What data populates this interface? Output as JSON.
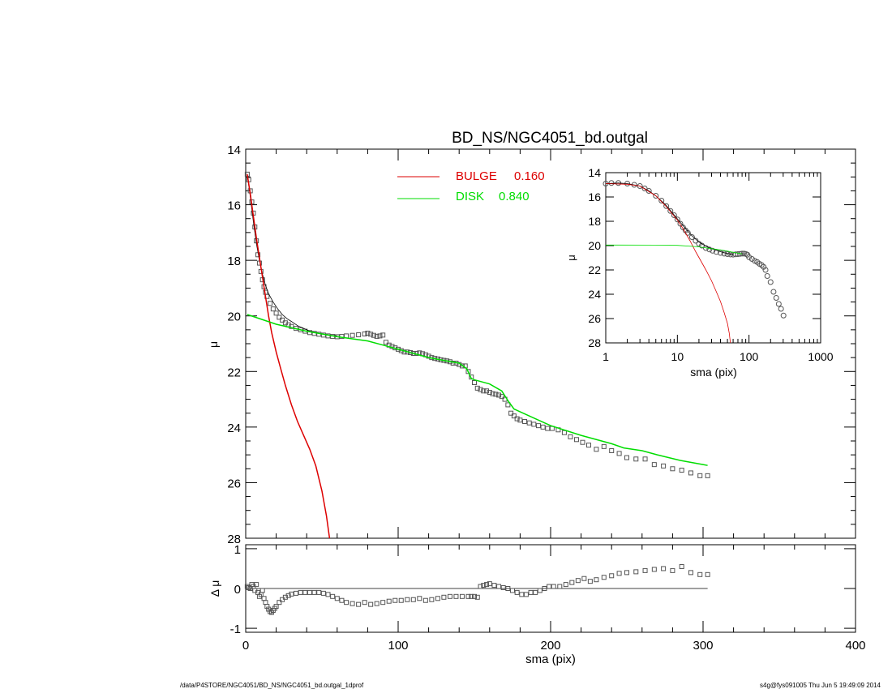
{
  "chart_data": [
    {
      "panel": "main",
      "type": "scatter",
      "title": "BD_NS/NGC4051_bd.outgal",
      "xlabel": "",
      "ylabel": "μ",
      "xlim": [
        0,
        400
      ],
      "ylim": [
        28,
        14
      ],
      "y_reversed": true,
      "yticks": [
        14,
        16,
        18,
        20,
        22,
        24,
        26,
        28
      ],
      "xticks": [
        0,
        100,
        200,
        300,
        400
      ],
      "legend": [
        {
          "label": "BULGE",
          "value": "0.160",
          "color": "#dd0000"
        },
        {
          "label": "DISK",
          "value": "0.840",
          "color": "#00dd00"
        }
      ],
      "legend_placement": "top-center",
      "series": [
        {
          "kind": "observed",
          "marker": "square",
          "color": "#555555",
          "x": [
            1,
            2,
            3,
            4,
            5,
            6,
            7,
            8,
            9,
            10,
            11,
            12,
            13,
            14,
            16,
            18,
            20,
            22,
            24,
            26,
            28,
            30,
            33,
            36,
            39,
            42,
            45,
            48,
            51,
            54,
            57,
            60,
            63,
            66,
            70,
            74,
            78,
            80,
            82,
            84,
            86,
            88,
            90,
            92,
            94,
            96,
            98,
            100,
            102,
            104,
            106,
            108,
            110,
            112,
            114,
            116,
            118,
            120,
            122,
            124,
            126,
            128,
            130,
            132,
            134,
            136,
            138,
            140,
            142,
            144,
            146,
            148,
            150,
            152,
            154,
            156,
            158,
            160,
            162,
            164,
            166,
            168,
            170,
            172,
            174,
            176,
            178,
            180,
            183,
            186,
            189,
            192,
            195,
            198,
            201,
            205,
            209,
            213,
            217,
            221,
            225,
            230,
            235,
            240,
            245,
            250,
            256,
            262,
            268,
            274,
            280,
            286,
            292,
            298,
            303
          ],
          "y": [
            14.9,
            15.1,
            15.5,
            15.9,
            16.3,
            16.8,
            17.3,
            17.8,
            18.1,
            18.4,
            18.7,
            18.95,
            19.15,
            19.3,
            19.55,
            19.75,
            19.9,
            20.05,
            20.15,
            20.25,
            20.32,
            20.38,
            20.45,
            20.5,
            20.55,
            20.6,
            20.63,
            20.66,
            20.69,
            20.72,
            20.74,
            20.75,
            20.74,
            20.72,
            20.7,
            20.68,
            20.65,
            20.62,
            20.66,
            20.7,
            20.74,
            20.72,
            20.69,
            20.95,
            21.05,
            21.1,
            21.15,
            21.2,
            21.25,
            21.3,
            21.3,
            21.32,
            21.35,
            21.35,
            21.33,
            21.36,
            21.4,
            21.45,
            21.5,
            21.53,
            21.55,
            21.58,
            21.6,
            21.62,
            21.65,
            21.7,
            21.7,
            21.75,
            21.8,
            21.8,
            22.0,
            22.2,
            22.4,
            22.6,
            22.65,
            22.7,
            22.7,
            22.75,
            22.8,
            22.82,
            22.85,
            22.9,
            23.0,
            23.2,
            23.5,
            23.6,
            23.7,
            23.75,
            23.8,
            23.85,
            23.9,
            23.95,
            24.0,
            24.05,
            24.05,
            24.1,
            24.2,
            24.35,
            24.45,
            24.55,
            24.65,
            24.8,
            24.7,
            24.85,
            24.95,
            25.1,
            25.15,
            25.15,
            25.35,
            25.4,
            25.5,
            25.55,
            25.65,
            25.75,
            25.75
          ]
        },
        {
          "kind": "total-model",
          "color": "#000000",
          "x": [
            1,
            3,
            5,
            7,
            9,
            11,
            13,
            15,
            18,
            21,
            24,
            27,
            30,
            34,
            38,
            42,
            46,
            50,
            55,
            60
          ],
          "y": [
            14.9,
            15.7,
            16.6,
            17.4,
            18.0,
            18.5,
            18.9,
            19.2,
            19.5,
            19.75,
            19.95,
            20.1,
            20.2,
            20.35,
            20.45,
            20.55,
            20.6,
            20.65,
            20.7,
            20.72
          ]
        },
        {
          "kind": "bulge",
          "name": "BULGE",
          "color": "#dd0000",
          "x": [
            1,
            3,
            5,
            7,
            9,
            11,
            13,
            15,
            17,
            20,
            23,
            26,
            30,
            34,
            38,
            42,
            46,
            50,
            53,
            55
          ],
          "y": [
            14.9,
            15.6,
            16.4,
            17.2,
            17.9,
            18.6,
            19.3,
            20.0,
            20.6,
            21.3,
            21.9,
            22.5,
            23.2,
            23.8,
            24.3,
            24.8,
            25.4,
            26.3,
            27.2,
            28.0
          ]
        },
        {
          "kind": "disk",
          "name": "DISK",
          "color": "#00dd00",
          "x": [
            1,
            20,
            40,
            60,
            80,
            90,
            100,
            110,
            120,
            130,
            140,
            145,
            148,
            150,
            160,
            168,
            172,
            176,
            190,
            200,
            220,
            240,
            248,
            260,
            270,
            285,
            300,
            303
          ],
          "y": [
            19.95,
            20.3,
            20.55,
            20.75,
            20.9,
            21.05,
            21.2,
            21.35,
            21.5,
            21.6,
            21.7,
            21.9,
            22.25,
            22.3,
            22.45,
            22.7,
            23.05,
            23.35,
            23.7,
            23.95,
            24.3,
            24.6,
            24.75,
            24.85,
            25.0,
            25.2,
            25.35,
            25.38
          ]
        }
      ]
    },
    {
      "panel": "inset",
      "type": "scatter",
      "xlabel": "sma (pix)",
      "ylabel": "μ",
      "xscale": "log",
      "xlim": [
        1,
        1000
      ],
      "ylim": [
        28,
        14
      ],
      "y_reversed": true,
      "xticklabels": [
        "1",
        "10",
        "100",
        "1000"
      ],
      "yticks": [
        14,
        16,
        18,
        20,
        22,
        24,
        26,
        28
      ],
      "series": [
        {
          "kind": "observed",
          "marker": "circle",
          "color": "#555555",
          "x": [
            1,
            1.2,
            1.5,
            2,
            2.5,
            3,
            3.5,
            4,
            5,
            6,
            7,
            8,
            9,
            10,
            11,
            12,
            13,
            14,
            16,
            18,
            20,
            22,
            25,
            28,
            31,
            35,
            40,
            45,
            50,
            55,
            60,
            65,
            70,
            75,
            80,
            85,
            90,
            95,
            100,
            110,
            120,
            130,
            140,
            150,
            160,
            170,
            180,
            200,
            220,
            240,
            260,
            280,
            303
          ],
          "y": [
            14.9,
            14.85,
            14.85,
            14.9,
            15.0,
            15.1,
            15.3,
            15.5,
            15.9,
            16.3,
            16.75,
            17.15,
            17.5,
            17.85,
            18.2,
            18.5,
            18.75,
            18.95,
            19.3,
            19.6,
            19.85,
            20.0,
            20.2,
            20.32,
            20.42,
            20.52,
            20.6,
            20.66,
            20.7,
            20.73,
            20.74,
            20.72,
            20.7,
            20.68,
            20.66,
            20.66,
            20.68,
            20.75,
            20.95,
            21.1,
            21.25,
            21.35,
            21.5,
            21.6,
            21.75,
            22.0,
            22.5,
            23.0,
            23.8,
            24.3,
            24.8,
            25.2,
            25.75
          ]
        },
        {
          "kind": "total-model",
          "color": "#000000",
          "x": [
            1,
            1.5,
            2,
            3,
            4,
            5,
            7,
            10,
            13,
            16,
            20,
            25,
            30,
            40,
            50,
            60
          ],
          "y": [
            14.9,
            14.85,
            14.9,
            15.1,
            15.5,
            15.9,
            16.7,
            17.8,
            18.6,
            19.2,
            19.7,
            20.05,
            20.25,
            20.5,
            20.65,
            20.72
          ]
        },
        {
          "kind": "bulge",
          "name": "BULGE",
          "color": "#dd0000",
          "x": [
            1,
            2,
            3,
            5,
            7,
            10,
            12,
            15,
            18,
            21,
            25,
            30,
            35,
            40,
            45,
            50,
            53,
            55
          ],
          "y": [
            14.9,
            14.95,
            15.1,
            15.9,
            16.8,
            17.9,
            18.6,
            19.6,
            20.5,
            21.2,
            22.0,
            22.9,
            23.8,
            24.6,
            25.5,
            26.4,
            27.2,
            28.0
          ]
        },
        {
          "kind": "disk",
          "name": "DISK",
          "color": "#00dd00",
          "x": [
            1,
            5,
            10,
            20,
            30,
            40,
            50,
            60,
            70,
            80
          ],
          "y": [
            19.95,
            19.96,
            19.98,
            20.1,
            20.25,
            20.35,
            20.45,
            20.55,
            20.62,
            20.68
          ]
        }
      ]
    },
    {
      "panel": "residual",
      "type": "scatter",
      "xlabel": "sma (pix)",
      "ylabel": "Δ μ",
      "xlim": [
        0,
        400
      ],
      "ylim": [
        -1.1,
        1.1
      ],
      "yticks": [
        -1,
        0,
        1
      ],
      "xticks": [
        0,
        100,
        200,
        300,
        400
      ],
      "series": [
        {
          "kind": "residual",
          "marker": "square",
          "color": "#555555",
          "x": [
            1,
            2,
            3,
            4,
            5,
            6,
            7,
            8,
            9,
            10,
            11,
            12,
            13,
            14,
            15,
            16,
            17,
            18,
            19,
            20,
            22,
            24,
            26,
            28,
            30,
            33,
            36,
            39,
            42,
            45,
            48,
            51,
            54,
            57,
            60,
            63,
            66,
            70,
            74,
            78,
            82,
            86,
            90,
            94,
            98,
            102,
            106,
            110,
            114,
            118,
            122,
            126,
            130,
            134,
            138,
            142,
            146,
            148,
            150,
            152,
            154,
            156,
            158,
            160,
            163,
            166,
            169,
            172,
            175,
            178,
            181,
            184,
            187,
            190,
            193,
            196,
            199,
            202,
            206,
            210,
            214,
            218,
            222,
            226,
            230,
            235,
            240,
            245,
            250,
            256,
            262,
            268,
            274,
            280,
            286,
            292,
            298,
            303
          ],
          "y": [
            0.05,
            0.02,
            0.0,
            0.1,
            0.05,
            -0.05,
            0.1,
            -0.1,
            -0.2,
            -0.15,
            -0.05,
            -0.25,
            -0.35,
            -0.45,
            -0.52,
            -0.58,
            -0.6,
            -0.55,
            -0.5,
            -0.45,
            -0.35,
            -0.28,
            -0.22,
            -0.18,
            -0.14,
            -0.12,
            -0.1,
            -0.1,
            -0.1,
            -0.1,
            -0.1,
            -0.12,
            -0.15,
            -0.2,
            -0.25,
            -0.3,
            -0.35,
            -0.38,
            -0.4,
            -0.35,
            -0.4,
            -0.38,
            -0.35,
            -0.32,
            -0.3,
            -0.3,
            -0.28,
            -0.28,
            -0.25,
            -0.3,
            -0.28,
            -0.25,
            -0.22,
            -0.2,
            -0.2,
            -0.2,
            -0.2,
            -0.2,
            -0.2,
            -0.22,
            0.05,
            0.08,
            0.1,
            0.12,
            0.08,
            0.05,
            0.02,
            0.0,
            -0.05,
            -0.1,
            -0.15,
            -0.15,
            -0.1,
            -0.1,
            -0.05,
            0.0,
            0.05,
            0.05,
            0.05,
            0.1,
            0.15,
            0.2,
            0.25,
            0.18,
            0.22,
            0.28,
            0.32,
            0.38,
            0.4,
            0.42,
            0.45,
            0.48,
            0.5,
            0.45,
            0.55,
            0.4,
            0.35,
            0.35
          ]
        }
      ]
    }
  ],
  "footer": {
    "left": "/data/P4STORE/NGC4051/BD_NS/NGC4051_bd.outgal_1dprof",
    "right": "s4g@fys091005  Thu Jun  5 19:49:09 2014"
  }
}
